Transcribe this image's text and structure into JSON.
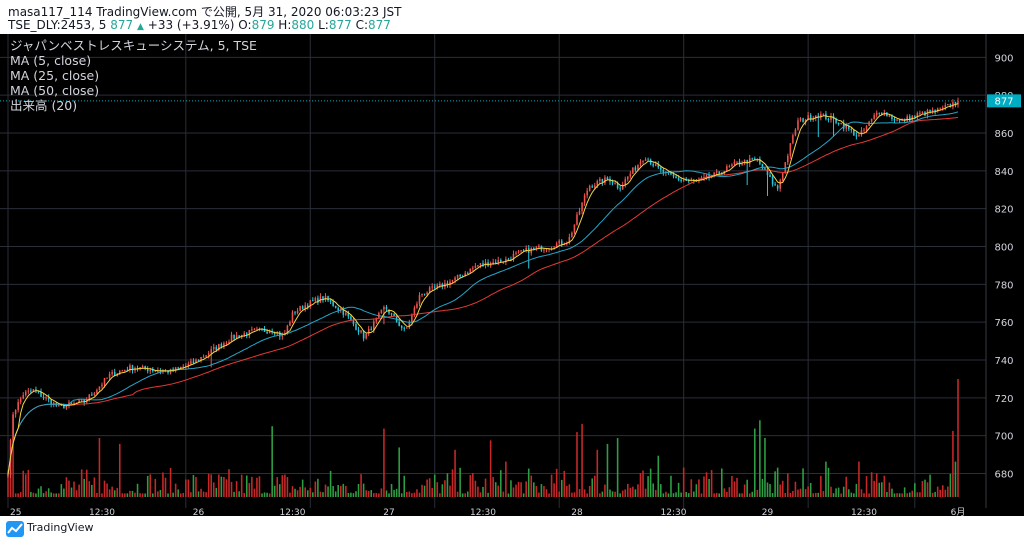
{
  "header": {
    "line1": "masa117_114 TradingView.com で公開, 5月 31, 2020 06:03:23 JST",
    "symbol": "TSE_DLY:2453, 5",
    "last": "877",
    "change": "+33 (+3.91%)",
    "o_label": "O:",
    "o": "879",
    "h_label": "H:",
    "h": "880",
    "l_label": "L:",
    "l": "877",
    "c_label": "C:",
    "c": "877"
  },
  "legend": {
    "title": "ジャパンベストレスキューシステム, 5, TSE",
    "ma5": "MA (5, close)",
    "ma25": "MA (25, close)",
    "ma50": "MA (50, close)",
    "volume": "出来高 (20)"
  },
  "footer": {
    "brand": "TradingView",
    "logo_icon": "tradingview-logo-icon"
  },
  "colors": {
    "background": "#000000",
    "grid": "#2a2e39",
    "up": "#ef5350",
    "down": "#26c6da",
    "ma5": "#f5d442",
    "ma25": "#26a6c8",
    "ma50": "#e53935",
    "volume_up": "#c62828",
    "volume_down": "#2e9e44"
  },
  "chart_data": {
    "type": "candlestick",
    "interval": "5",
    "x_ticks": [
      "25",
      "12:30",
      "26",
      "12:30",
      "27",
      "12:30",
      "28",
      "12:30",
      "29",
      "12:30",
      "6月"
    ],
    "y_ticks": [
      680,
      700,
      720,
      740,
      760,
      780,
      800,
      820,
      840,
      860,
      880,
      900
    ],
    "ylim": [
      666,
      906
    ],
    "last_price": 877,
    "grid": true,
    "anchors": {
      "t": [
        0,
        2,
        6,
        10,
        20,
        30,
        40,
        48,
        56,
        64,
        72,
        80,
        88,
        96,
        104,
        108,
        112,
        118,
        124,
        132,
        140,
        148,
        156,
        162,
        168,
        176,
        184,
        192,
        196,
        198,
        204,
        212,
        220,
        228,
        236,
        240,
        244,
        250,
        256,
        262,
        270,
        278,
        286,
        294,
        302,
        310,
        318,
        326,
        334,
        342,
        350,
        358,
        366,
        373
      ],
      "price": [
        681,
        712,
        722,
        724,
        715,
        718,
        732,
        736,
        735,
        734,
        738,
        745,
        752,
        755,
        756,
        752,
        765,
        770,
        773,
        765,
        752,
        768,
        755,
        775,
        778,
        783,
        790,
        792,
        793,
        795,
        798,
        800,
        803,
        832,
        836,
        831,
        838,
        848,
        840,
        836,
        834,
        838,
        844,
        846,
        830,
        866,
        870,
        866,
        858,
        872,
        866,
        870,
        872,
        877
      ]
    },
    "spikes": [
      [
        80,
        6
      ],
      [
        148,
        6
      ],
      [
        204,
        8
      ],
      [
        290,
        10
      ],
      [
        298,
        10
      ],
      [
        318,
        10
      ],
      [
        324,
        8
      ]
    ],
    "volume_spikes": [
      [
        2,
        0.7
      ],
      [
        36,
        0.5
      ],
      [
        44,
        0.45
      ],
      [
        104,
        0.6
      ],
      [
        148,
        0.58
      ],
      [
        154,
        0.42
      ],
      [
        176,
        0.4
      ],
      [
        190,
        0.48
      ],
      [
        196,
        0.3
      ],
      [
        224,
        0.55
      ],
      [
        226,
        0.62
      ],
      [
        232,
        0.4
      ],
      [
        236,
        0.45
      ],
      [
        240,
        0.5
      ],
      [
        256,
        0.35
      ],
      [
        266,
        0.25
      ],
      [
        294,
        0.58
      ],
      [
        296,
        0.65
      ],
      [
        298,
        0.5
      ],
      [
        322,
        0.3
      ],
      [
        335,
        0.3
      ],
      [
        372,
        0.56
      ],
      [
        373,
        0.3
      ],
      [
        374,
        1.0
      ]
    ]
  }
}
